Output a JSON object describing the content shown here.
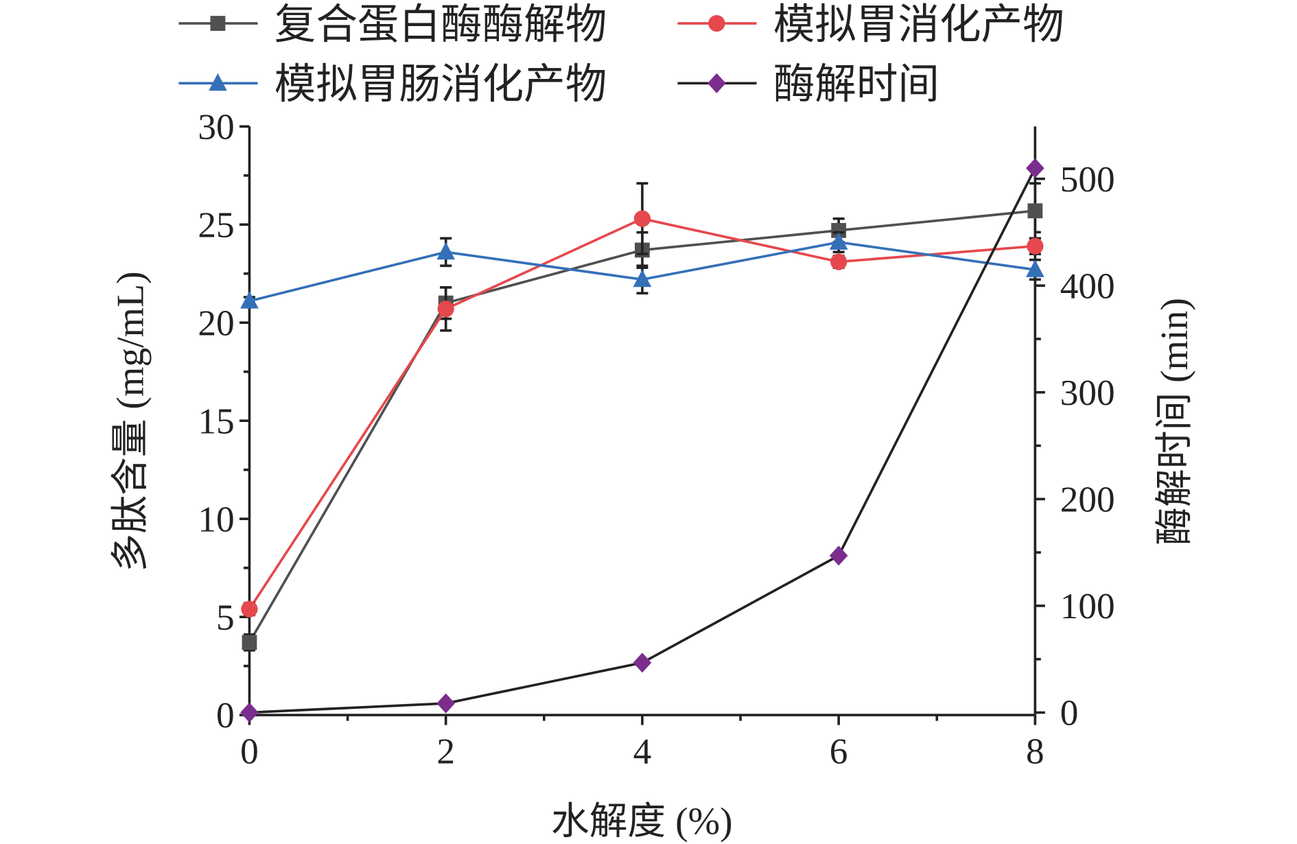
{
  "chart_data": {
    "type": "line",
    "title": "",
    "xlabel": "水解度 (%)",
    "ylabel": "多肽含量 (mg/mL)",
    "y2label": "酶解时间 (min)",
    "x": [
      0,
      2,
      4,
      6,
      8
    ],
    "xticks": [
      "0",
      "2",
      "4",
      "6",
      "8"
    ],
    "xlim": [
      0,
      8
    ],
    "ylim": [
      0,
      30
    ],
    "yticks": [
      "0",
      "5",
      "10",
      "15",
      "20",
      "25",
      "30"
    ],
    "y2lim": [
      0,
      550
    ],
    "y2ticks": [
      "0",
      "100",
      "200",
      "300",
      "400",
      "500"
    ],
    "legend_position": "top",
    "series": [
      {
        "name": "复合蛋白酶酶解物",
        "axis": "left",
        "color": "#505050",
        "marker": "square",
        "values": [
          3.7,
          21.0,
          23.7,
          24.7,
          25.7
        ],
        "errors": [
          0.4,
          0.8,
          0.9,
          0.6,
          1.4
        ]
      },
      {
        "name": "模拟胃消化产物",
        "axis": "left",
        "color": "#e5484d",
        "marker": "circle",
        "values": [
          5.4,
          20.7,
          25.3,
          23.1,
          23.9
        ],
        "errors": [
          0.3,
          1.1,
          1.8,
          0.3,
          0.4
        ]
      },
      {
        "name": "模拟胃肠消化产物",
        "axis": "left",
        "color": "#3470b8",
        "marker": "triangle",
        "values": [
          21.1,
          23.6,
          22.2,
          24.1,
          22.7
        ],
        "errors": [
          0.2,
          0.7,
          0.7,
          0.5,
          0.5
        ]
      },
      {
        "name": "酶解时间",
        "axis": "right",
        "color": "#222222",
        "markerColor": "#7b2d8e",
        "marker": "diamond",
        "values": [
          0,
          8.6,
          46.7,
          147,
          510
        ],
        "errors": null
      }
    ]
  }
}
